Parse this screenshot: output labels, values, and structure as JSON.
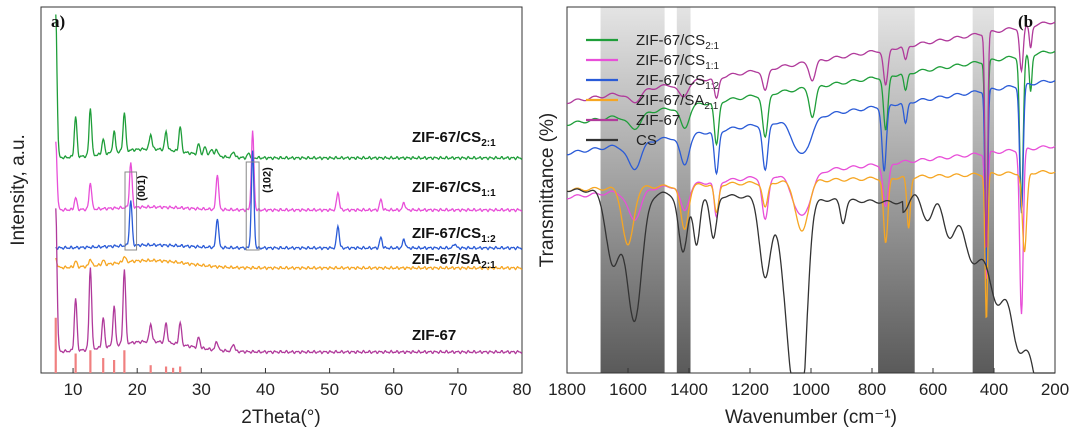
{
  "chart_data": [
    {
      "type": "line",
      "panel_label": "a)",
      "xlabel": "2Theta(°)",
      "ylabel": "Intensity, a.u.",
      "xlim": [
        5,
        80
      ],
      "xticks": [
        "10",
        "20",
        "30",
        "40",
        "50",
        "60",
        "70",
        "80"
      ],
      "annotations": [
        {
          "text": "(001)",
          "x": 19
        },
        {
          "text": "(102)",
          "x": 38
        }
      ],
      "series": [
        {
          "label": {
            "main": "ZIF-67/CS",
            "sub": "2:1"
          },
          "color": "#1f9e3a",
          "baseline": 0.25,
          "hump": 0.06,
          "peaks": [
            [
              7.3,
              0.95
            ],
            [
              10.4,
              0.27
            ],
            [
              12.7,
              0.32
            ],
            [
              14.7,
              0.1
            ],
            [
              16.4,
              0.14
            ],
            [
              18.0,
              0.26
            ],
            [
              22.1,
              0.1
            ],
            [
              24.5,
              0.12
            ],
            [
              26.7,
              0.17
            ],
            [
              29.6,
              0.07
            ],
            [
              30.6,
              0.06
            ],
            [
              31.6,
              0.05
            ],
            [
              32.4,
              0.05
            ],
            [
              35.0,
              0.04
            ],
            [
              37.4,
              0.03
            ]
          ]
        },
        {
          "label": {
            "main": "ZIF-67/CS",
            "sub": "1:1"
          },
          "color": "#e84fd8",
          "baseline": 0.13,
          "hump": 0.02,
          "peaks": [
            [
              7.3,
              0.45
            ],
            [
              10.4,
              0.08
            ],
            [
              12.7,
              0.18
            ],
            [
              19.0,
              0.3
            ],
            [
              32.5,
              0.24
            ],
            [
              38.0,
              0.52
            ],
            [
              51.3,
              0.12
            ],
            [
              58.0,
              0.07
            ],
            [
              61.6,
              0.05
            ]
          ]
        },
        {
          "label": {
            "main": "ZIF-67/CS",
            "sub": "1:2"
          },
          "color": "#2a5bd7",
          "baseline": 0.07,
          "hump": 0.02,
          "peaks": [
            [
              19.0,
              0.3
            ],
            [
              32.5,
              0.2
            ],
            [
              38.0,
              0.64
            ],
            [
              51.3,
              0.15
            ],
            [
              58.0,
              0.07
            ],
            [
              61.6,
              0.06
            ],
            [
              69.5,
              0.03
            ]
          ]
        },
        {
          "label": {
            "main": "ZIF-67/SA",
            "sub": "2:1"
          },
          "color": "#f6a623",
          "baseline": 0.03,
          "hump": 0.05,
          "peaks": [
            [
              7.3,
              0.06
            ],
            [
              10.4,
              0.04
            ],
            [
              12.7,
              0.05
            ],
            [
              14.7,
              0.03
            ],
            [
              18.0,
              0.04
            ]
          ]
        },
        {
          "label": {
            "main": "ZIF-67",
            "sub": ""
          },
          "color": "#b03a9b",
          "baseline": 0.06,
          "hump": 0.07,
          "peaks": [
            [
              7.3,
              0.95
            ],
            [
              10.4,
              0.35
            ],
            [
              12.7,
              0.55
            ],
            [
              14.7,
              0.2
            ],
            [
              16.4,
              0.26
            ],
            [
              18.0,
              0.5
            ],
            [
              22.1,
              0.12
            ],
            [
              24.5,
              0.13
            ],
            [
              26.7,
              0.15
            ],
            [
              29.6,
              0.07
            ],
            [
              32.4,
              0.06
            ],
            [
              35.0,
              0.05
            ]
          ]
        },
        {
          "label": {
            "main": "",
            "sub": ""
          },
          "color": "#f08080",
          "type": "reference-sticks",
          "sticks": [
            [
              7.3,
              0.85
            ],
            [
              10.4,
              0.3
            ],
            [
              12.7,
              0.35
            ],
            [
              14.7,
              0.23
            ],
            [
              16.4,
              0.2
            ],
            [
              18.0,
              0.35
            ],
            [
              22.1,
              0.12
            ],
            [
              24.5,
              0.1
            ],
            [
              25.6,
              0.08
            ],
            [
              26.7,
              0.1
            ]
          ]
        }
      ]
    },
    {
      "type": "line",
      "panel_label": "(b",
      "xlabel": "Wavenumber (cm⁻¹)",
      "ylabel": "Transmittance (%)",
      "xlim": [
        1800,
        200
      ],
      "xticks": [
        "1800",
        "1600",
        "1400",
        "1200",
        "1000",
        "800",
        "600",
        "400",
        "200"
      ],
      "shaded_bands": [
        [
          1690,
          1480
        ],
        [
          1440,
          1395
        ],
        [
          780,
          660
        ],
        [
          470,
          400
        ]
      ],
      "legend_position": "top-left",
      "series": [
        {
          "name": {
            "main": "ZIF-67/CS",
            "sub": "2:1"
          },
          "color": "#1f9e3a",
          "baseline": 0.68,
          "tilt": 0.2,
          "dips": [
            [
              1580,
              0.04,
              30
            ],
            [
              1415,
              0.06,
              20
            ],
            [
              1310,
              0.12,
              10
            ],
            [
              1150,
              0.12,
              12
            ],
            [
              995,
              0.08,
              14
            ],
            [
              755,
              0.15,
              10
            ],
            [
              690,
              0.05,
              8
            ],
            [
              425,
              0.55,
              6
            ],
            [
              310,
              0.4,
              8
            ],
            [
              280,
              0.1,
              6
            ]
          ]
        },
        {
          "name": {
            "main": "ZIF-67/CS",
            "sub": "1:1"
          },
          "color": "#e84fd8",
          "baseline": 0.48,
          "tilt": 0.14,
          "dips": [
            [
              1580,
              0.08,
              30
            ],
            [
              1415,
              0.07,
              20
            ],
            [
              1310,
              0.1,
              10
            ],
            [
              1150,
              0.12,
              14
            ],
            [
              1030,
              0.12,
              40
            ],
            [
              755,
              0.12,
              12
            ],
            [
              425,
              0.35,
              6
            ],
            [
              310,
              0.45,
              8
            ]
          ]
        },
        {
          "name": {
            "main": "ZIF-67/CS",
            "sub": "1:2"
          },
          "color": "#2a5bd7",
          "baseline": 0.6,
          "tilt": 0.2,
          "dips": [
            [
              1580,
              0.07,
              30
            ],
            [
              1415,
              0.08,
              20
            ],
            [
              1310,
              0.12,
              10
            ],
            [
              1150,
              0.13,
              12
            ],
            [
              1030,
              0.1,
              40
            ],
            [
              760,
              0.18,
              10
            ],
            [
              690,
              0.06,
              8
            ],
            [
              425,
              0.5,
              6
            ],
            [
              310,
              0.35,
              8
            ]
          ]
        },
        {
          "name": {
            "main": "ZIF-67/SA",
            "sub": "2:1"
          },
          "color": "#f6a623",
          "baseline": 0.5,
          "tilt": 0.05,
          "dips": [
            [
              1600,
              0.16,
              25
            ],
            [
              1415,
              0.12,
              18
            ],
            [
              1310,
              0.08,
              10
            ],
            [
              1150,
              0.07,
              12
            ],
            [
              1030,
              0.14,
              28
            ],
            [
              755,
              0.18,
              10
            ],
            [
              680,
              0.14,
              8
            ],
            [
              425,
              0.4,
              6
            ],
            [
              300,
              0.22,
              10
            ]
          ]
        },
        {
          "name": {
            "main": "ZIF-67",
            "sub": ""
          },
          "color": "#b03a9b",
          "baseline": 0.74,
          "tilt": 0.22,
          "dips": [
            [
              1580,
              0.03,
              30
            ],
            [
              1420,
              0.04,
              20
            ],
            [
              1310,
              0.06,
              10
            ],
            [
              1150,
              0.06,
              12
            ],
            [
              995,
              0.05,
              14
            ],
            [
              755,
              0.1,
              10
            ],
            [
              690,
              0.04,
              8
            ],
            [
              425,
              0.6,
              6
            ],
            [
              310,
              0.12,
              8
            ],
            [
              280,
              0.06,
              6
            ]
          ]
        },
        {
          "name": {
            "main": "CS",
            "sub": ""
          },
          "color": "#333333",
          "baseline": 0.5,
          "tilt": -0.05,
          "dips": [
            [
              1650,
              0.2,
              30
            ],
            [
              1580,
              0.35,
              35
            ],
            [
              1420,
              0.16,
              20
            ],
            [
              1375,
              0.14,
              15
            ],
            [
              1320,
              0.12,
              15
            ],
            [
              1150,
              0.22,
              25
            ],
            [
              1060,
              0.45,
              40
            ],
            [
              1030,
              0.35,
              25
            ],
            [
              895,
              0.06,
              12
            ]
          ],
          "tail_drop": 0.4
        }
      ]
    }
  ]
}
